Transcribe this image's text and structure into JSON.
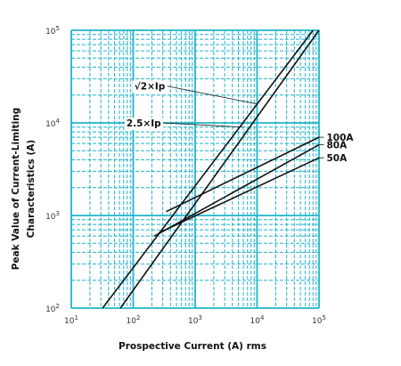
{
  "chart_data": {
    "type": "line",
    "title": "",
    "xlabel": "Prospective Current (A) rms",
    "ylabel_line1": "Peak Value of Current-Limiting",
    "ylabel_line2": "Characteristics (A)",
    "x_scale": "log",
    "y_scale": "log",
    "xlim": [
      10,
      100000
    ],
    "ylim": [
      100,
      100000
    ],
    "grid": true,
    "colors": {
      "grid": "#1fb4cc",
      "line": "#111111",
      "tick_text": "#333333"
    },
    "x_ticks": [
      {
        "base": "10",
        "exp": "1",
        "value": 10
      },
      {
        "base": "10",
        "exp": "2",
        "value": 100
      },
      {
        "base": "10",
        "exp": "3",
        "value": 1000
      },
      {
        "base": "10",
        "exp": "4",
        "value": 10000
      },
      {
        "base": "10",
        "exp": "5",
        "value": 100000
      }
    ],
    "y_ticks": [
      {
        "base": "10",
        "exp": "2",
        "value": 100
      },
      {
        "base": "10",
        "exp": "3",
        "value": 1000
      },
      {
        "base": "10",
        "exp": "4",
        "value": 10000
      },
      {
        "base": "10",
        "exp": "5",
        "value": 100000
      }
    ],
    "series": [
      {
        "name": "√2×Ip",
        "x": [
          32,
          80000
        ],
        "y": [
          100,
          100000
        ]
      },
      {
        "name": "2.5×Ip",
        "x": [
          62,
          100000
        ],
        "y": [
          100,
          100000
        ]
      },
      {
        "name": "100A",
        "x": [
          340,
          100000
        ],
        "y": [
          1100,
          7000
        ]
      },
      {
        "name": "80A",
        "x": [
          220,
          100000
        ],
        "y": [
          600,
          5800
        ]
      },
      {
        "name": "50A",
        "x": [
          260,
          100000
        ],
        "y": [
          650,
          4200
        ]
      }
    ],
    "labels": [
      {
        "text": "√2×Ip",
        "x": 350,
        "y": 25000,
        "point_x": 10000,
        "point_y": 16000
      },
      {
        "text": "2.5×Ip",
        "x": 300,
        "y": 10000,
        "point_x": 6000,
        "point_y": 9000
      },
      {
        "text": "100A",
        "x": 120000,
        "y": 7000,
        "point_x": 100000,
        "point_y": 7000
      },
      {
        "text": "80A",
        "x": 120000,
        "y": 5800,
        "point_x": 100000,
        "point_y": 5800
      },
      {
        "text": "50A",
        "x": 120000,
        "y": 4200,
        "point_x": 100000,
        "point_y": 4200
      }
    ]
  }
}
